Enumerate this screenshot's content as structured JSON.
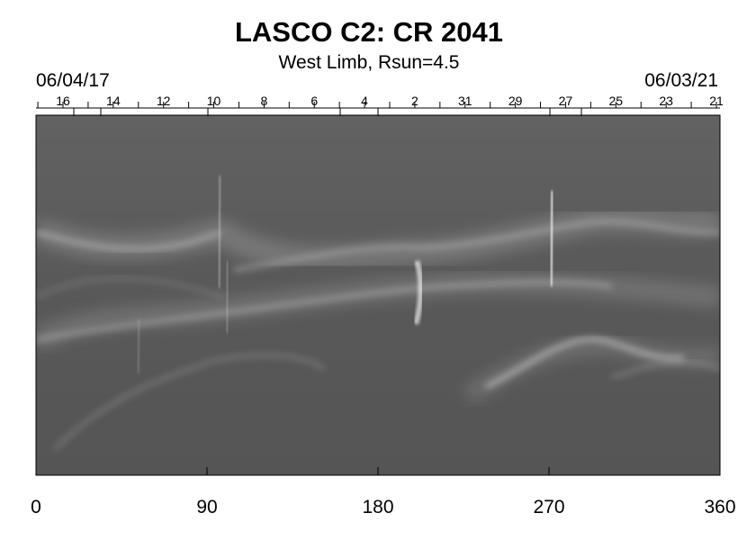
{
  "chart_data": {
    "type": "heatmap",
    "title": "LASCO C2: CR 2041",
    "subtitle": "West Limb, Rsun=4.5",
    "date_left": "06/04/17",
    "date_right": "06/03/21",
    "x_ticks": [
      "0",
      "90",
      "180",
      "270",
      "360"
    ],
    "xlim": [
      0,
      360
    ],
    "top_day_labels": [
      "16",
      "14",
      "12",
      "10",
      "8",
      "6",
      "4",
      "2",
      "31",
      "29",
      "27",
      "25",
      "23",
      "21"
    ],
    "colors": {
      "plot_background": "#5a5a5a",
      "feature": "#e8e8e8",
      "axis": "#000000"
    }
  }
}
